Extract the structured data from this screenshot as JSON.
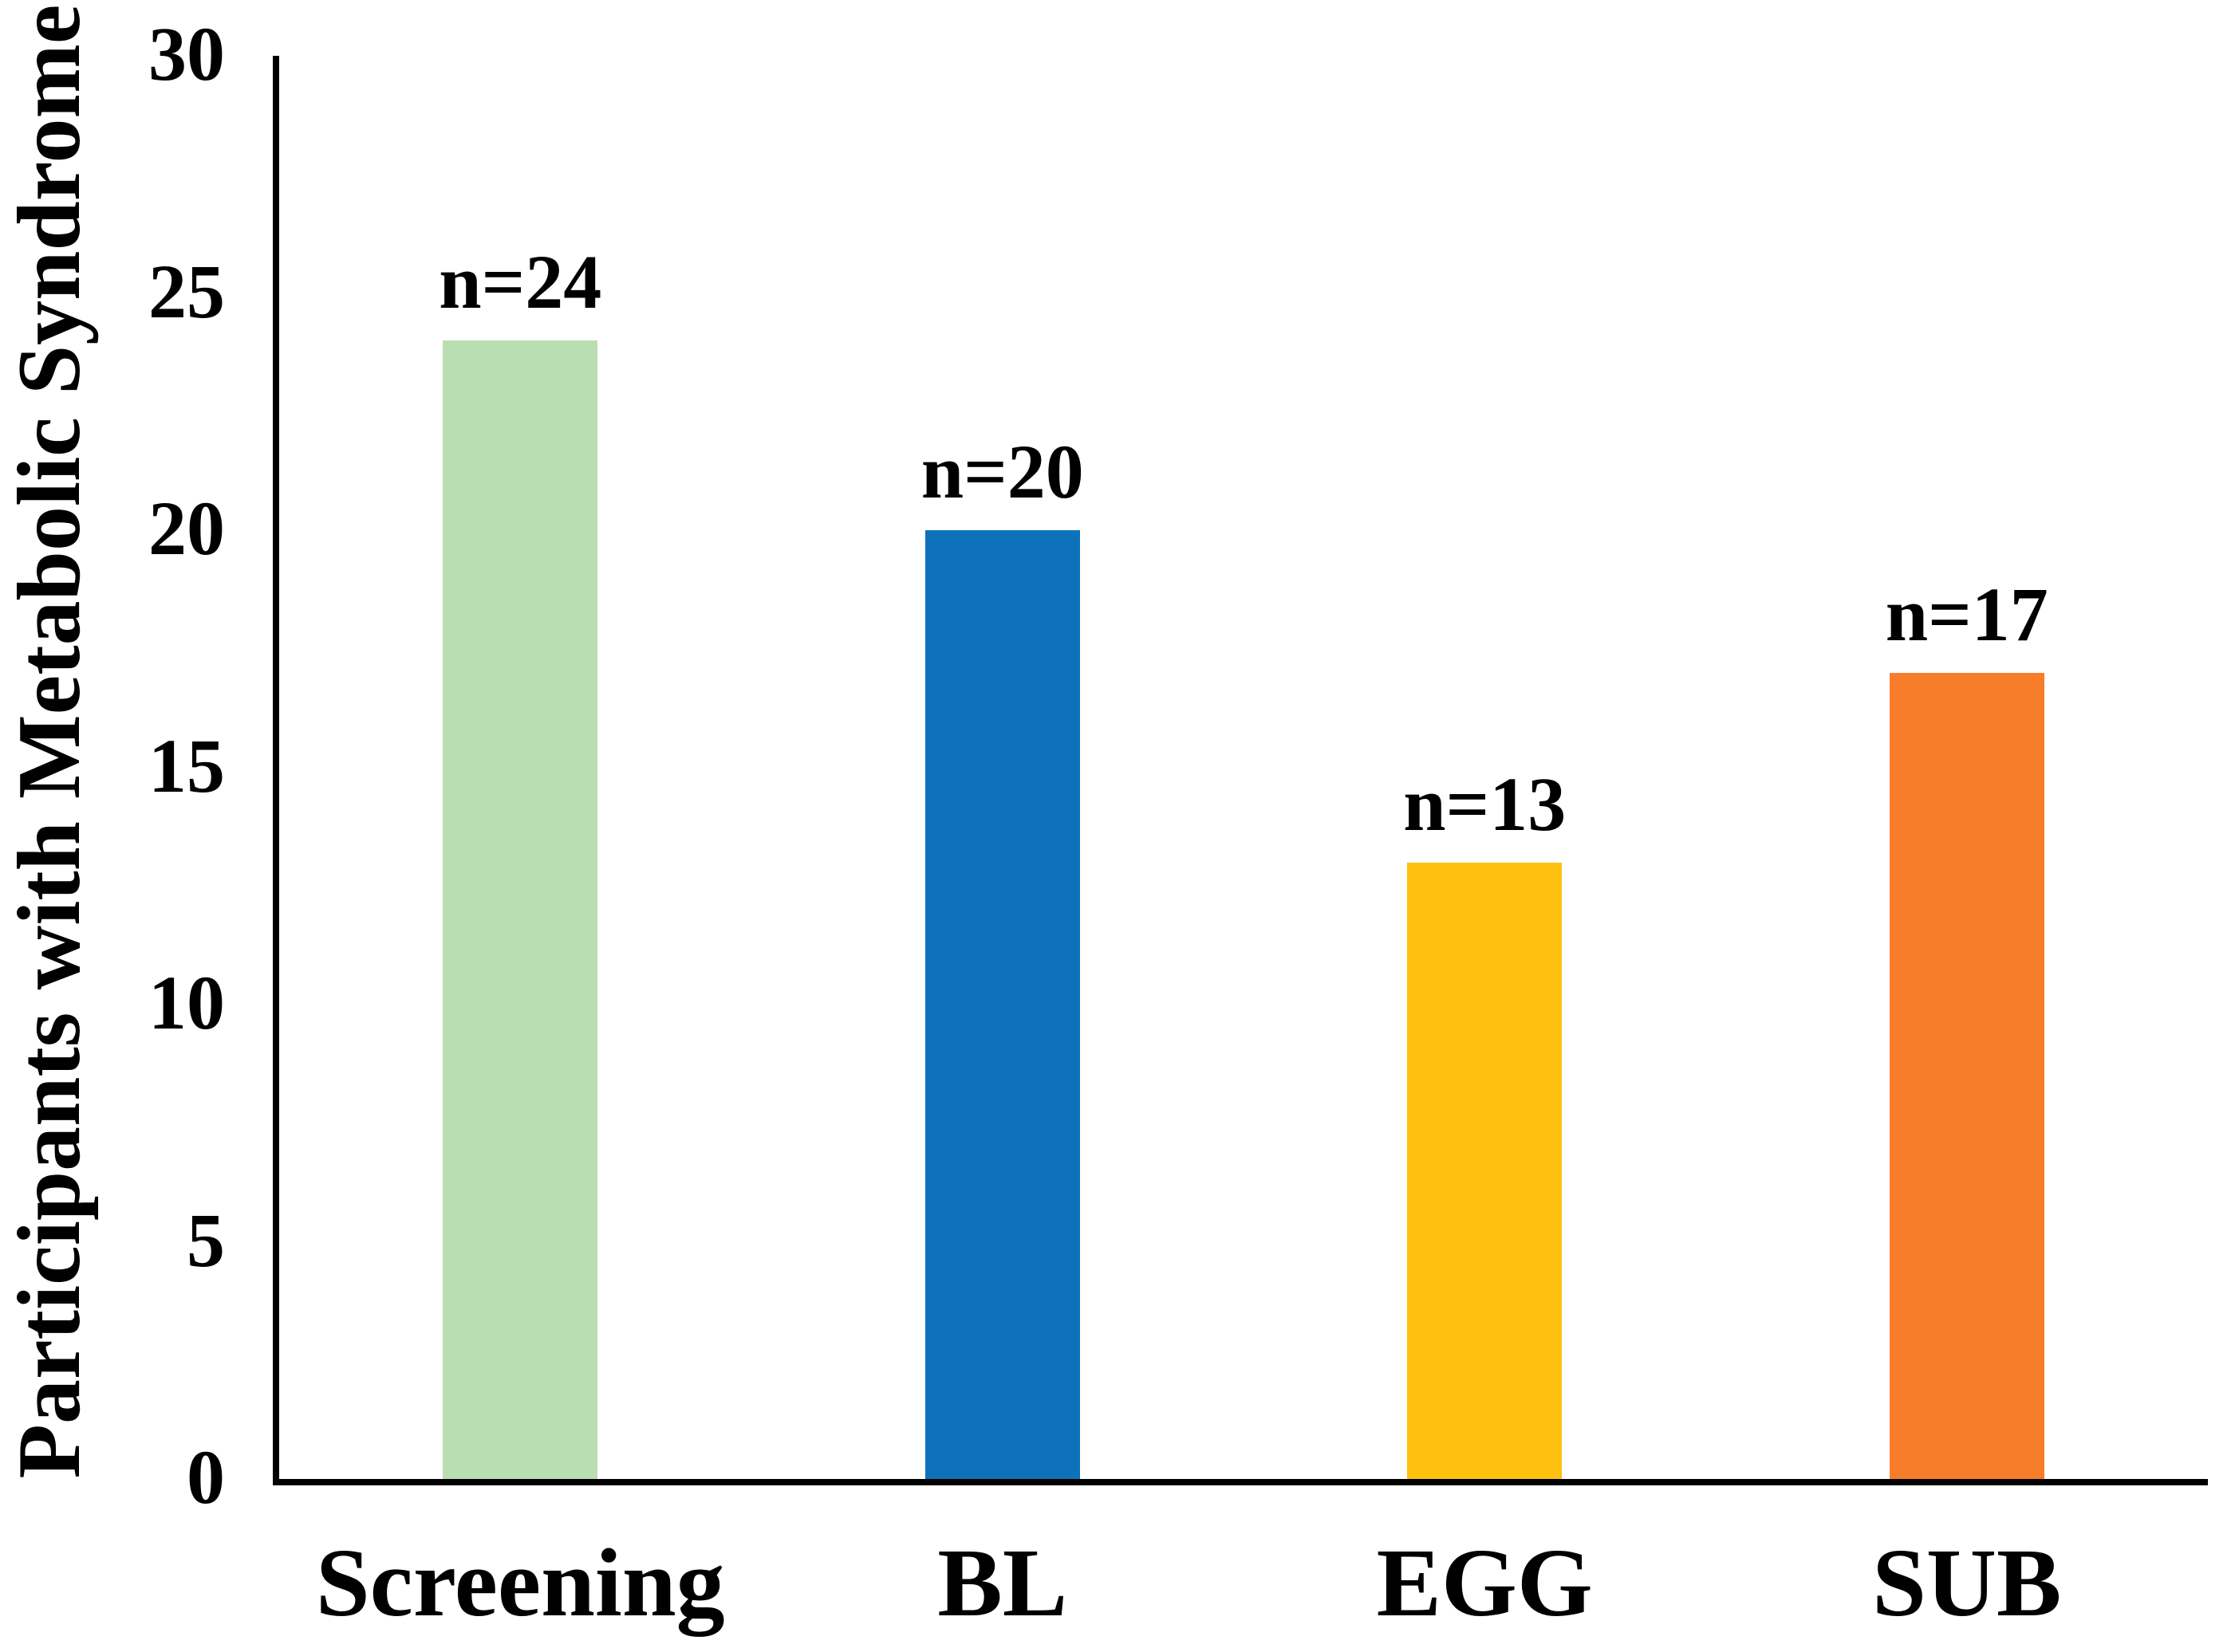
{
  "chart_data": {
    "type": "bar",
    "title": "",
    "ylabel": "Participants with Metabolic Syndrome",
    "xlabel": "",
    "categories": [
      "Screening",
      "BL",
      "EGG",
      "SUB"
    ],
    "values": [
      24,
      20,
      13,
      17
    ],
    "bar_labels": [
      "n=24",
      "n=20",
      "n=13",
      "n=17"
    ],
    "bar_colors": [
      "#B9DEB1",
      "#0D72BA",
      "#FEC110",
      "#F87D2B"
    ],
    "ylim": [
      0,
      30
    ],
    "yticks": [
      0,
      5,
      10,
      15,
      20,
      25,
      30
    ],
    "grid": false,
    "legend_position": "none",
    "axis_color": "#000000",
    "background_color": "#FFFFFF",
    "text_color": "#000000"
  }
}
